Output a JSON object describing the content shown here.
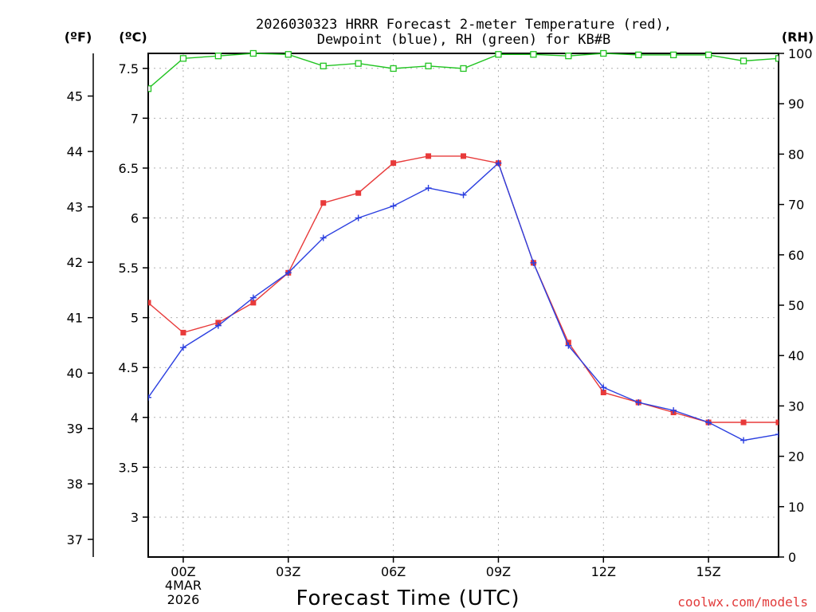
{
  "chart_data": {
    "type": "line",
    "title_line1": "2026030323 HRRR Forecast 2-meter Temperature (red),",
    "title_line2": "Dewpoint (blue), RH (green) for KB#B",
    "xlabel": "Forecast Time (UTC)",
    "credit": "coolwx.com/models",
    "unit_left_f": "(ºF)",
    "unit_left_c": "(ºC)",
    "unit_right": "(RH)",
    "x": [
      -1,
      0,
      1,
      2,
      3,
      4,
      5,
      6,
      7,
      8,
      9,
      10,
      11,
      12,
      13,
      14,
      15,
      16,
      17
    ],
    "xlim": [
      -1,
      17
    ],
    "x_ticks": [
      {
        "x": 0,
        "label": "00Z",
        "sub1": "4MAR",
        "sub2": "2026"
      },
      {
        "x": 3,
        "label": "03Z",
        "sub1": "",
        "sub2": ""
      },
      {
        "x": 6,
        "label": "06Z",
        "sub1": "",
        "sub2": ""
      },
      {
        "x": 9,
        "label": "09Z",
        "sub1": "",
        "sub2": ""
      },
      {
        "x": 12,
        "label": "12Z",
        "sub1": "",
        "sub2": ""
      },
      {
        "x": 15,
        "label": "15Z",
        "sub1": "",
        "sub2": ""
      }
    ],
    "ylim_c": [
      2.6,
      7.65
    ],
    "c_ticks": [
      3,
      3.5,
      4,
      4.5,
      5,
      5.5,
      6,
      6.5,
      7,
      7.5
    ],
    "c_tick_labels": [
      "3",
      "3.5",
      "4",
      "4.5",
      "5",
      "5.5",
      "6",
      "6.5",
      "7",
      "7.5"
    ],
    "f_ticks": [
      37,
      38,
      39,
      40,
      41,
      42,
      43,
      44,
      45
    ],
    "f_tick_labels": [
      "37",
      "38",
      "39",
      "40",
      "41",
      "42",
      "43",
      "44",
      "45"
    ],
    "ylim_rh": [
      0,
      100
    ],
    "rh_ticks": [
      0,
      10,
      20,
      30,
      40,
      50,
      60,
      70,
      80,
      90,
      100
    ],
    "rh_tick_labels": [
      "0",
      "10",
      "20",
      "30",
      "40",
      "50",
      "60",
      "70",
      "80",
      "90",
      "100"
    ],
    "series": [
      {
        "name": "Temperature",
        "color": "#e83a3a",
        "marker": "square",
        "axis": "c",
        "values": [
          5.15,
          4.85,
          4.95,
          5.15,
          5.45,
          6.15,
          6.25,
          6.55,
          6.62,
          6.62,
          6.55,
          5.55,
          4.75,
          4.25,
          4.15,
          4.05,
          3.95,
          3.95,
          3.95
        ]
      },
      {
        "name": "Dewpoint",
        "color": "#2b3fe0",
        "marker": "plus",
        "axis": "c",
        "values": [
          4.2,
          4.7,
          4.92,
          5.2,
          5.45,
          5.8,
          6.0,
          6.12,
          6.3,
          6.23,
          6.55,
          5.55,
          4.72,
          4.3,
          4.15,
          4.07,
          3.95,
          3.77,
          3.83
        ]
      },
      {
        "name": "RH",
        "color": "#22c422",
        "marker": "open-square",
        "axis": "rh",
        "values": [
          93,
          99,
          99.5,
          100,
          99.8,
          97.5,
          98,
          97,
          97.5,
          97,
          99.8,
          99.8,
          99.5,
          100,
          99.7,
          99.7,
          99.7,
          98.5,
          99
        ]
      }
    ]
  }
}
